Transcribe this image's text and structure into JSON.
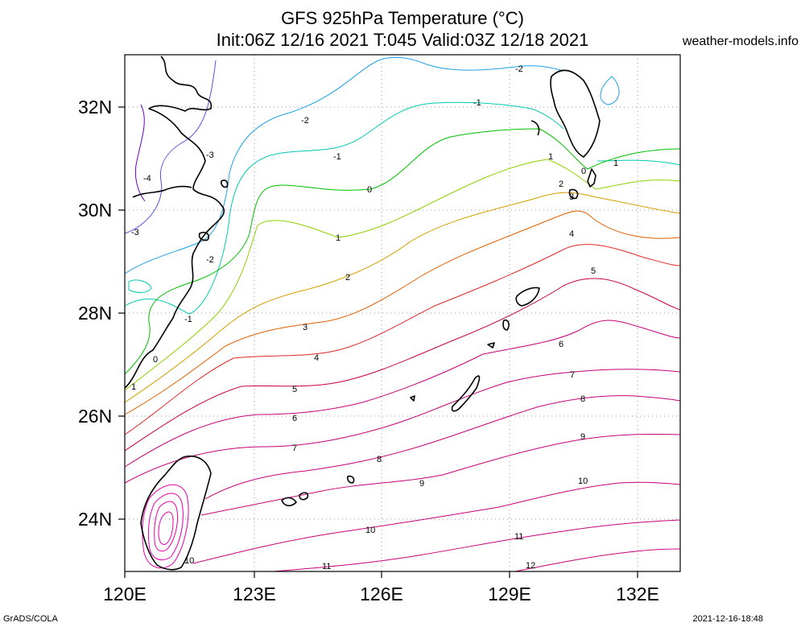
{
  "header": {
    "title_line1": "GFS 925hPa Temperature (°C)",
    "title_line2": "Init:06Z 12/16 2021 T:045 Valid:03Z 12/18 2021",
    "site": "weather-models.info"
  },
  "footer": {
    "left": "GrADS/COLA",
    "right": "2021-12-16-18:48"
  },
  "map": {
    "lat_labels": [
      "32N",
      "30N",
      "28N",
      "26N",
      "24N"
    ],
    "lon_labels": [
      "120E",
      "123E",
      "126E",
      "129E",
      "132E"
    ],
    "grid": true,
    "contour_labels": [
      "-2",
      "-1",
      "-2",
      "-3",
      "-1",
      "-4",
      "0",
      "1",
      "2",
      "1",
      "0",
      "3",
      "-3",
      "-2",
      "4",
      "1",
      "5",
      "2",
      "-1",
      "3",
      "6",
      "0",
      "4",
      "7",
      "1",
      "5",
      "8",
      "6",
      "9",
      "7",
      "8",
      "10",
      "9",
      "10",
      "11",
      "10",
      "11",
      "12"
    ]
  },
  "colors": {
    "minus4": "#6a00c8",
    "minus3": "#5050e6",
    "minus2": "#1ca0e6",
    "minus1": "#00c8b4",
    "zero": "#00c000",
    "one": "#8cd200",
    "two": "#d2a000",
    "three": "#e06000",
    "four": "#e02828",
    "five": "#c8003c",
    "warm": "#c80078",
    "hot": "#e600aa",
    "coast": "#000000"
  }
}
